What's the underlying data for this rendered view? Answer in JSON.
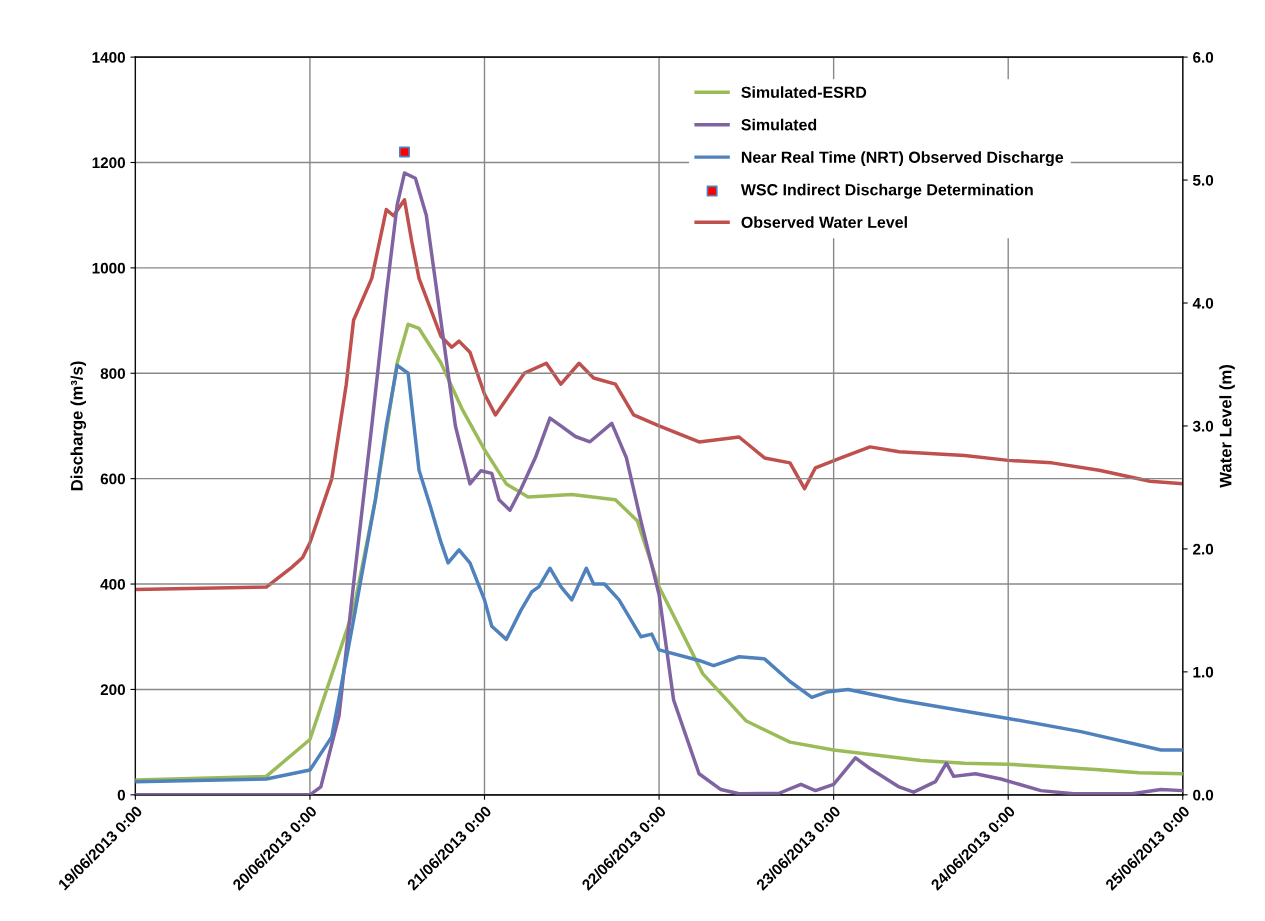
{
  "chart_data": {
    "type": "line",
    "ylabel": "Discharge (m³/s)",
    "y2label": "Water Level (m)",
    "xlim": [
      "2013-06-19T00:00",
      "2013-06-25T00:00"
    ],
    "xticks": [
      {
        "value": "2013-06-19T00:00",
        "label": "19/06/2013 0:00"
      },
      {
        "value": "2013-06-20T00:00",
        "label": "20/06/2013 0:00"
      },
      {
        "value": "2013-06-21T00:00",
        "label": "21/06/2013 0:00"
      },
      {
        "value": "2013-06-22T00:00",
        "label": "22/06/2013 0:00"
      },
      {
        "value": "2013-06-23T00:00",
        "label": "23/06/2013 0:00"
      },
      {
        "value": "2013-06-24T00:00",
        "label": "24/06/2013 0:00"
      },
      {
        "value": "2013-06-25T00:00",
        "label": "25/06/2013 0:00"
      }
    ],
    "ylim": [
      0,
      1400
    ],
    "yticks": [
      0,
      200,
      400,
      600,
      800,
      1000,
      1200,
      1400
    ],
    "y2lim": [
      0,
      6
    ],
    "y2ticks": [
      {
        "value": 0,
        "label": "0.0"
      },
      {
        "value": 1,
        "label": "1.0"
      },
      {
        "value": 2,
        "label": "2.0"
      },
      {
        "value": 3,
        "label": "3.0"
      },
      {
        "value": 4,
        "label": "4.0"
      },
      {
        "value": 5,
        "label": "5.0"
      },
      {
        "value": 6,
        "label": "6.0"
      }
    ],
    "grid": true,
    "legend": "top right",
    "marker": "none",
    "line_style": "solid",
    "series": [
      {
        "name": "Simulated-ESRD",
        "color": "#9bbb59",
        "x": [
          "2013-06-19T00:00",
          "2013-06-19T18:00",
          "2013-06-20T00:00",
          "2013-06-20T06:00",
          "2013-06-20T09:00",
          "2013-06-20T12:00",
          "2013-06-20T13:30",
          "2013-06-20T15:00",
          "2013-06-20T18:00",
          "2013-06-20T21:00",
          "2013-06-21T00:00",
          "2013-06-21T03:00",
          "2013-06-21T06:00",
          "2013-06-21T12:00",
          "2013-06-21T18:00",
          "2013-06-21T21:00",
          "2013-06-22T00:00",
          "2013-06-22T06:00",
          "2013-06-22T12:00",
          "2013-06-22T18:00",
          "2013-06-23T00:00",
          "2013-06-23T12:00",
          "2013-06-23T18:00",
          "2013-06-24T00:00",
          "2013-06-24T12:00",
          "2013-06-24T18:00",
          "2013-06-25T00:00"
        ],
        "values": [
          28,
          35,
          105,
          351,
          560,
          820,
          893,
          885,
          820,
          730,
          655,
          590,
          565,
          570,
          560,
          520,
          395,
          230,
          140,
          100,
          85,
          65,
          60,
          58,
          48,
          42,
          40
        ]
      },
      {
        "name": "Simulated",
        "color": "#8064a2",
        "x": [
          "2013-06-19T00:00",
          "2013-06-20T00:00",
          "2013-06-20T01:30",
          "2013-06-20T04:00",
          "2013-06-20T06:00",
          "2013-06-20T08:30",
          "2013-06-20T10:30",
          "2013-06-20T12:00",
          "2013-06-20T13:00",
          "2013-06-20T14:30",
          "2013-06-20T16:00",
          "2013-06-20T18:00",
          "2013-06-20T20:00",
          "2013-06-20T22:00",
          "2013-06-20T23:30",
          "2013-06-21T01:00",
          "2013-06-21T02:00",
          "2013-06-21T03:30",
          "2013-06-21T05:00",
          "2013-06-21T07:00",
          "2013-06-21T09:00",
          "2013-06-21T10:30",
          "2013-06-21T12:30",
          "2013-06-21T14:30",
          "2013-06-21T17:30",
          "2013-06-21T19:30",
          "2013-06-21T21:30",
          "2013-06-22T00:00",
          "2013-06-22T02:00",
          "2013-06-22T05:30",
          "2013-06-22T08:30",
          "2013-06-22T11:00",
          "2013-06-22T16:30",
          "2013-06-22T19:30",
          "2013-06-22T21:30",
          "2013-06-23T00:00",
          "2013-06-23T03:00",
          "2013-06-23T05:00",
          "2013-06-23T09:00",
          "2013-06-23T11:00",
          "2013-06-23T14:00",
          "2013-06-23T15:30",
          "2013-06-23T16:30",
          "2013-06-23T19:30",
          "2013-06-23T23:00",
          "2013-06-24T04:30",
          "2013-06-24T09:00",
          "2013-06-24T17:00",
          "2013-06-24T21:00",
          "2013-06-25T00:00"
        ],
        "values": [
          0,
          0,
          15,
          150,
          400,
          700,
          950,
          1120,
          1180,
          1170,
          1100,
          900,
          700,
          590,
          615,
          610,
          560,
          540,
          580,
          640,
          715,
          700,
          680,
          670,
          705,
          640,
          520,
          380,
          180,
          40,
          10,
          2,
          3,
          20,
          8,
          20,
          70,
          50,
          15,
          5,
          25,
          60,
          35,
          40,
          30,
          8,
          2,
          2,
          10,
          8
        ]
      },
      {
        "name": "Near Real Time (NRT) Observed Discharge",
        "color": "#4f81bd",
        "x": [
          "2013-06-19T00:00",
          "2013-06-19T18:00",
          "2013-06-20T00:00",
          "2013-06-20T03:00",
          "2013-06-20T06:00",
          "2013-06-20T09:00",
          "2013-06-20T10:30",
          "2013-06-20T12:00",
          "2013-06-20T13:30",
          "2013-06-20T15:00",
          "2013-06-20T16:30",
          "2013-06-20T18:00",
          "2013-06-20T19:00",
          "2013-06-20T20:30",
          "2013-06-20T22:00",
          "2013-06-21T00:00",
          "2013-06-21T01:00",
          "2013-06-21T03:00",
          "2013-06-21T05:00",
          "2013-06-21T06:30",
          "2013-06-21T07:30",
          "2013-06-21T09:00",
          "2013-06-21T10:30",
          "2013-06-21T12:00",
          "2013-06-21T14:00",
          "2013-06-21T15:00",
          "2013-06-21T16:30",
          "2013-06-21T18:30",
          "2013-06-21T21:30",
          "2013-06-21T23:00",
          "2013-06-22T00:00",
          "2013-06-22T05:30",
          "2013-06-22T07:30",
          "2013-06-22T08:30",
          "2013-06-22T11:00",
          "2013-06-22T14:30",
          "2013-06-22T18:00",
          "2013-06-22T21:00",
          "2013-06-22T23:00",
          "2013-06-23T02:00",
          "2013-06-23T09:00",
          "2013-06-23T17:30",
          "2013-06-24T00:00",
          "2013-06-24T10:00",
          "2013-06-24T21:00",
          "2013-06-25T00:00"
        ],
        "values": [
          25,
          30,
          47,
          110,
          332,
          560,
          700,
          815,
          800,
          616,
          550,
          480,
          440,
          465,
          440,
          370,
          320,
          295,
          350,
          385,
          395,
          430,
          395,
          370,
          430,
          400,
          400,
          370,
          300,
          305,
          275,
          255,
          245,
          250,
          262,
          258,
          215,
          185,
          195,
          200,
          180,
          160,
          145,
          120,
          85,
          85
        ]
      },
      {
        "name": "WSC Indirect Discharge Determination",
        "type": "scatter",
        "marker": "square",
        "color": "#ff0000",
        "x": [
          "2013-06-20T13:00"
        ],
        "values": [
          1220
        ]
      },
      {
        "name": "Observed Water Level",
        "color": "#c0504d",
        "axis": "y2",
        "x": [
          "2013-06-19T00:00",
          "2013-06-19T18:00",
          "2013-06-19T21:30",
          "2013-06-19T23:00",
          "2013-06-20T00:00",
          "2013-06-20T03:00",
          "2013-06-20T05:00",
          "2013-06-20T06:00",
          "2013-06-20T08:30",
          "2013-06-20T10:30",
          "2013-06-20T11:30",
          "2013-06-20T13:00",
          "2013-06-20T14:00",
          "2013-06-20T15:00",
          "2013-06-20T18:00",
          "2013-06-20T19:30",
          "2013-06-20T20:30",
          "2013-06-20T22:00",
          "2013-06-21T00:00",
          "2013-06-21T01:30",
          "2013-06-21T03:30",
          "2013-06-21T05:30",
          "2013-06-21T08:30",
          "2013-06-21T10:30",
          "2013-06-21T13:00",
          "2013-06-21T15:00",
          "2013-06-21T18:00",
          "2013-06-21T20:30",
          "2013-06-22T00:00",
          "2013-06-22T05:30",
          "2013-06-22T11:00",
          "2013-06-22T14:30",
          "2013-06-22T18:00",
          "2013-06-22T20:00",
          "2013-06-22T21:30",
          "2013-06-23T01:00",
          "2013-06-23T05:00",
          "2013-06-23T09:00",
          "2013-06-23T18:00",
          "2013-06-24T00:00",
          "2013-06-24T06:00",
          "2013-06-24T12:30",
          "2013-06-24T19:30",
          "2013-06-25T00:00"
        ],
        "values": [
          1.67,
          1.69,
          1.85,
          1.93,
          2.05,
          2.57,
          3.34,
          3.86,
          4.2,
          4.76,
          4.71,
          4.84,
          4.5,
          4.2,
          3.73,
          3.64,
          3.69,
          3.6,
          3.26,
          3.09,
          3.26,
          3.43,
          3.51,
          3.34,
          3.51,
          3.39,
          3.34,
          3.09,
          3.0,
          2.87,
          2.91,
          2.74,
          2.7,
          2.49,
          2.66,
          2.74,
          2.83,
          2.79,
          2.76,
          2.72,
          2.7,
          2.64,
          2.55,
          2.53
        ]
      }
    ]
  }
}
